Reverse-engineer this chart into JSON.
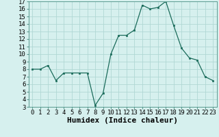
{
  "x": [
    0,
    1,
    2,
    3,
    4,
    5,
    6,
    7,
    8,
    9,
    10,
    11,
    12,
    13,
    14,
    15,
    16,
    17,
    18,
    19,
    20,
    21,
    22,
    23
  ],
  "y": [
    8.0,
    8.0,
    8.5,
    6.5,
    7.5,
    7.5,
    7.5,
    7.5,
    3.2,
    4.8,
    10.0,
    12.5,
    12.5,
    13.2,
    16.5,
    16.0,
    16.2,
    17.0,
    13.8,
    10.8,
    9.5,
    9.2,
    7.0,
    6.5
  ],
  "xlabel": "Humidex (Indice chaleur)",
  "ylim": [
    3,
    17
  ],
  "xlim_min": -0.5,
  "xlim_max": 23.5,
  "yticks": [
    3,
    4,
    5,
    6,
    7,
    8,
    9,
    10,
    11,
    12,
    13,
    14,
    15,
    16,
    17
  ],
  "xticks": [
    0,
    1,
    2,
    3,
    4,
    5,
    6,
    7,
    8,
    9,
    10,
    11,
    12,
    13,
    14,
    15,
    16,
    17,
    18,
    19,
    20,
    21,
    22,
    23
  ],
  "line_color": "#1a6b5a",
  "marker_color": "#1a6b5a",
  "bg_color": "#d6f0ee",
  "grid_color": "#b0d8d4",
  "xlabel_fontsize": 8,
  "tick_fontsize": 6.5
}
